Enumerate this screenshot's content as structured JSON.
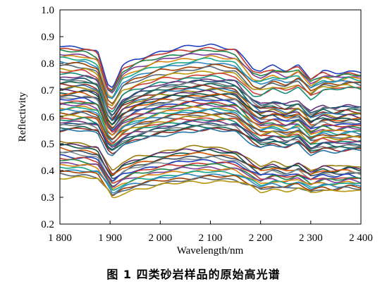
{
  "caption": "图 1   四类砂岩样品的原始高光谱",
  "chart_data": {
    "type": "line",
    "title": "",
    "xlabel": "Wavelength/nm",
    "ylabel": "Reflectivity",
    "xlim": [
      1800,
      2400
    ],
    "ylim": [
      0.2,
      1.0
    ],
    "xticks": [
      1800,
      1900,
      2000,
      2100,
      2200,
      2300,
      2400
    ],
    "xtick_labels": [
      "1 800",
      "1 900",
      "2 000",
      "2 100",
      "2 200",
      "2 300",
      "2 400"
    ],
    "yticks": [
      0.2,
      0.3,
      0.4,
      0.5,
      0.6,
      0.7,
      0.8,
      0.9,
      1.0
    ],
    "ytick_labels": [
      "0.2",
      "0.3",
      "0.4",
      "0.5",
      "0.6",
      "0.7",
      "0.8",
      "0.9",
      "1.0"
    ],
    "grid": false,
    "legend": "none",
    "group_envelopes": [
      {
        "x": [
          1800,
          1850,
          1875,
          1895,
          1905,
          1925,
          1950,
          2000,
          2050,
          2100,
          2150,
          2185,
          2200,
          2225,
          2250,
          2275,
          2300,
          2325,
          2350,
          2375,
          2400
        ],
        "upper": [
          0.865,
          0.86,
          0.845,
          0.72,
          0.71,
          0.79,
          0.815,
          0.845,
          0.86,
          0.87,
          0.855,
          0.78,
          0.77,
          0.79,
          0.775,
          0.795,
          0.745,
          0.77,
          0.76,
          0.77,
          0.765
        ],
        "lower": [
          0.76,
          0.76,
          0.74,
          0.63,
          0.62,
          0.68,
          0.7,
          0.73,
          0.74,
          0.75,
          0.74,
          0.68,
          0.68,
          0.7,
          0.69,
          0.71,
          0.67,
          0.7,
          0.7,
          0.71,
          0.7
        ]
      },
      {
        "x": [
          1800,
          1850,
          1875,
          1895,
          1905,
          1925,
          1950,
          2000,
          2050,
          2100,
          2150,
          2185,
          2200,
          2225,
          2250,
          2275,
          2300,
          2325,
          2350,
          2375,
          2400
        ],
        "upper": [
          0.745,
          0.75,
          0.735,
          0.63,
          0.605,
          0.665,
          0.69,
          0.72,
          0.735,
          0.74,
          0.73,
          0.665,
          0.65,
          0.66,
          0.645,
          0.66,
          0.62,
          0.645,
          0.635,
          0.645,
          0.64
        ],
        "lower": [
          0.545,
          0.55,
          0.54,
          0.47,
          0.46,
          0.49,
          0.51,
          0.53,
          0.545,
          0.55,
          0.545,
          0.5,
          0.485,
          0.495,
          0.485,
          0.5,
          0.46,
          0.475,
          0.47,
          0.475,
          0.475
        ]
      },
      {
        "x": [
          1800,
          1850,
          1875,
          1895,
          1905,
          1925,
          1950,
          2000,
          2050,
          2100,
          2150,
          2185,
          2200,
          2225,
          2250,
          2275,
          2300,
          2325,
          2350,
          2375,
          2400
        ],
        "upper": [
          0.51,
          0.5,
          0.49,
          0.42,
          0.395,
          0.43,
          0.45,
          0.47,
          0.485,
          0.49,
          0.475,
          0.43,
          0.415,
          0.43,
          0.415,
          0.43,
          0.4,
          0.42,
          0.41,
          0.42,
          0.41
        ],
        "lower": [
          0.375,
          0.375,
          0.37,
          0.325,
          0.295,
          0.315,
          0.33,
          0.345,
          0.355,
          0.36,
          0.36,
          0.335,
          0.32,
          0.33,
          0.325,
          0.335,
          0.315,
          0.325,
          0.32,
          0.33,
          0.325
        ]
      }
    ],
    "groups": [
      {
        "spectra_count": 12
      },
      {
        "spectra_count": 30
      },
      {
        "spectra_count": 16
      }
    ],
    "series_colors": [
      "#1f3fbf",
      "#c0392b",
      "#1e8449",
      "#7d3c98",
      "#d68910",
      "#17a589",
      "#2e86c1",
      "#a04000",
      "#566573",
      "#b7950b",
      "#cb4335",
      "#148f77",
      "#6c3483",
      "#1a5276",
      "#7b7d7d",
      "#0e6655",
      "#922b21",
      "#2874a6",
      "#9a7d0a",
      "#5b2c6f",
      "#0b5345",
      "#d35400",
      "#34495e",
      "#839192"
    ]
  }
}
